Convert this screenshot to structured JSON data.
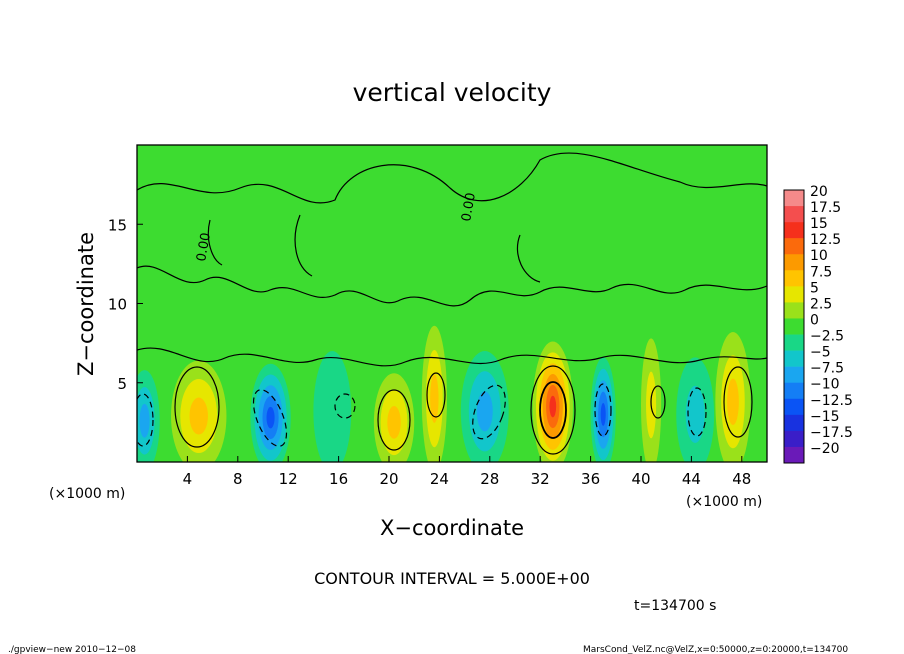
{
  "chart_data": {
    "type": "heatmap",
    "title": "vertical velocity",
    "xlabel": "X−coordinate",
    "ylabel": "Z−coordinate",
    "x_unit_left": "(×1000 m)",
    "x_unit_right": "(×1000 m)",
    "xlim": [
      0,
      50
    ],
    "ylim": [
      0,
      20
    ],
    "x_ticks": [
      4,
      8,
      12,
      16,
      20,
      24,
      28,
      32,
      36,
      40,
      44,
      48
    ],
    "y_ticks": [
      5,
      10,
      15
    ],
    "contour_interval_text": "CONTOUR INTERVAL = 5.000E+00",
    "time_text": "t=134700 s",
    "contour_labels": [
      "0.00",
      "0.00"
    ],
    "colorbar": {
      "labels": [
        "20",
        "17.5",
        "15",
        "12.5",
        "10",
        "7.5",
        "5",
        "2.5",
        "0",
        "−2.5",
        "−5",
        "−7.5",
        "−10",
        "−12.5",
        "−15",
        "−17.5",
        "−20"
      ],
      "colors": [
        "#f58a8a",
        "#f44e4e",
        "#f5301c",
        "#fb6a0c",
        "#fc9a00",
        "#ffc400",
        "#e6e600",
        "#9ae11a",
        "#3ddc30",
        "#19d786",
        "#12c6cb",
        "#1aa6f0",
        "#147ef5",
        "#0a54f5",
        "#1832e0",
        "#3a1ec8",
        "#6a1ab8"
      ]
    },
    "features": [
      {
        "x": 0.6,
        "z": 2.6,
        "w": 1.2,
        "value": -7.5
      },
      {
        "x": 4.9,
        "z": 2.9,
        "w": 2.2,
        "value": 8.0
      },
      {
        "x": 10.6,
        "z": 2.8,
        "w": 1.6,
        "value": -12.0
      },
      {
        "x": 15.5,
        "z": 3.2,
        "w": 1.5,
        "value": -3.5
      },
      {
        "x": 20.4,
        "z": 2.5,
        "w": 1.6,
        "value": 7.0
      },
      {
        "x": 23.6,
        "z": 4.0,
        "w": 1.0,
        "value": 7.5
      },
      {
        "x": 27.6,
        "z": 3.2,
        "w": 1.9,
        "value": -7.5
      },
      {
        "x": 33.0,
        "z": 3.5,
        "w": 1.6,
        "value": 14.0
      },
      {
        "x": 37.0,
        "z": 3.0,
        "w": 1.0,
        "value": -12.0
      },
      {
        "x": 40.8,
        "z": 3.6,
        "w": 0.8,
        "value": 6.0
      },
      {
        "x": 44.3,
        "z": 3.0,
        "w": 1.5,
        "value": -4.0
      },
      {
        "x": 47.3,
        "z": 3.8,
        "w": 1.4,
        "value": 8.0
      }
    ]
  },
  "footer": {
    "left": "./gpview−new  2010−12−08",
    "right": "MarsCond_VelZ.nc@VelZ,x=0:50000,z=0:20000,t=134700"
  }
}
